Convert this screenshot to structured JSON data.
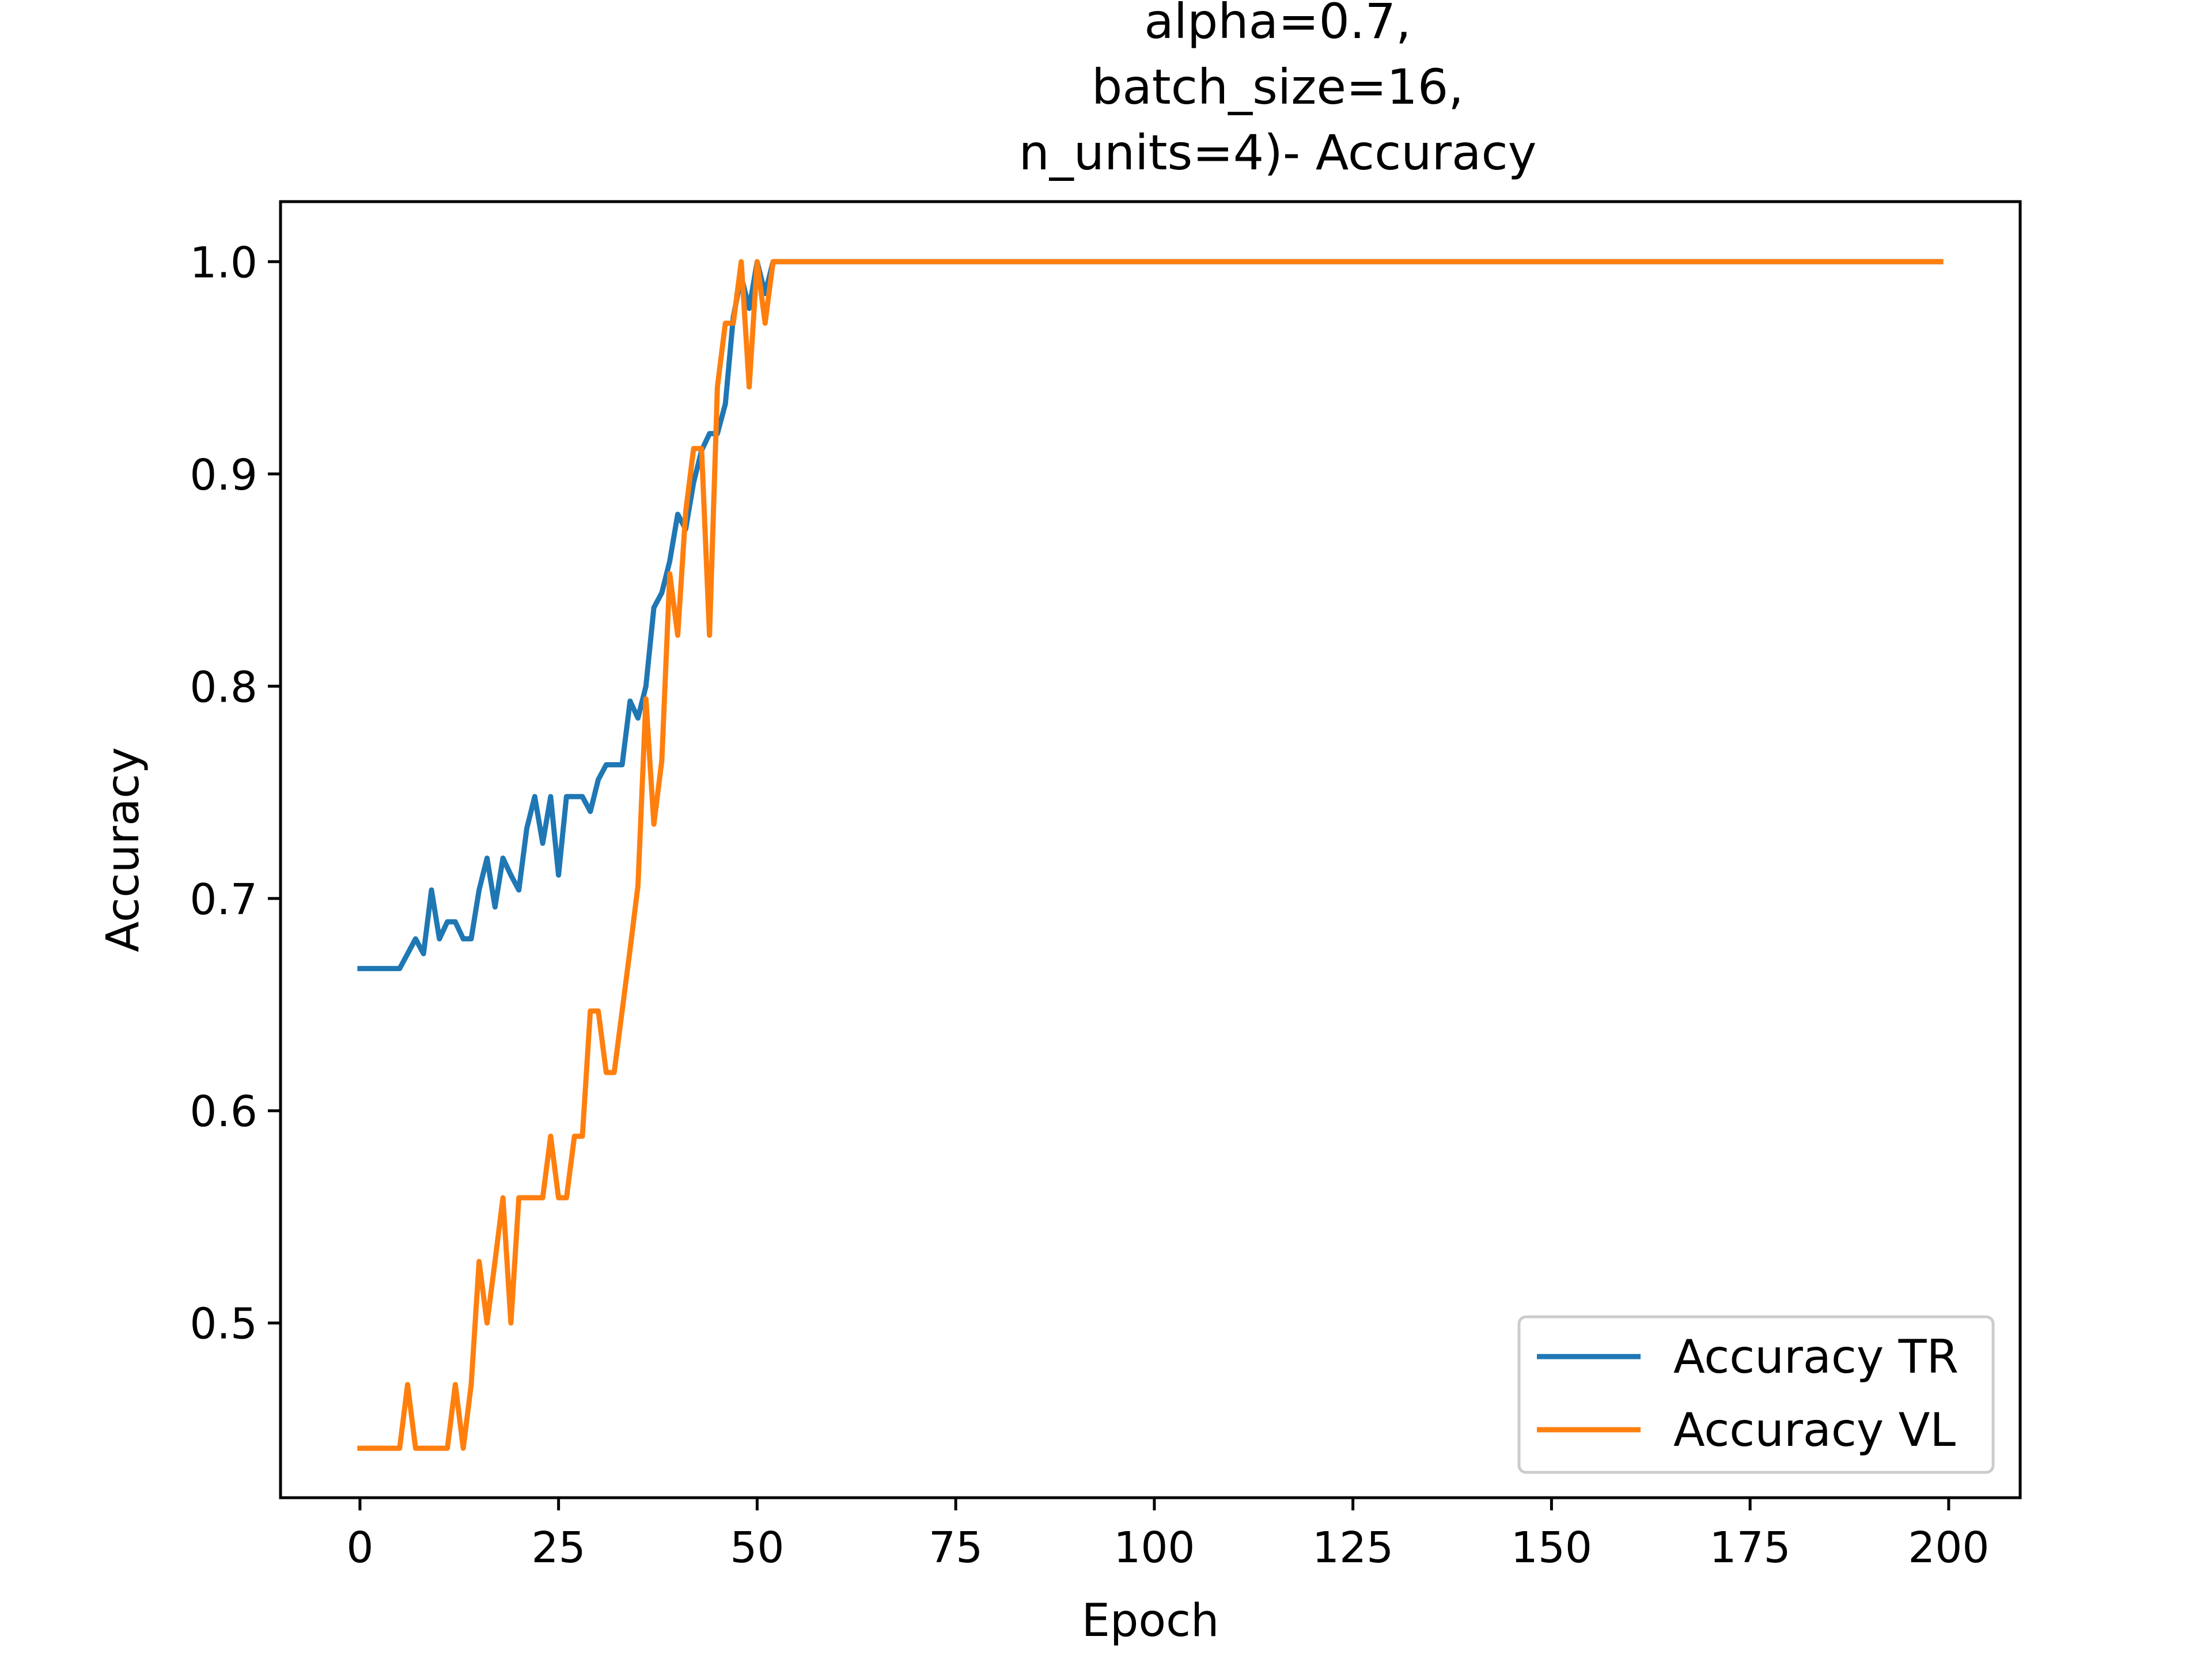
{
  "chart_data": {
    "type": "line",
    "title_lines": [
      "alpha=0.7,",
      "batch_size=16,",
      "n_units=4)- Accuracy"
    ],
    "xlabel": "Epoch",
    "ylabel": "Accuracy",
    "xlim": [
      -10,
      209
    ],
    "ylim": [
      0.4177,
      1.0283
    ],
    "xticks": [
      0,
      25,
      50,
      75,
      100,
      125,
      150,
      175,
      200
    ],
    "yticks": [
      0.5,
      0.6,
      0.7,
      0.8,
      0.9,
      1.0
    ],
    "ytick_labels": [
      "0.5",
      "0.6",
      "0.7",
      "0.8",
      "0.9",
      "1.0"
    ],
    "legend_position": "lower right",
    "x": [
      0,
      1,
      2,
      3,
      4,
      5,
      6,
      7,
      8,
      9,
      10,
      11,
      12,
      13,
      14,
      15,
      16,
      17,
      18,
      19,
      20,
      21,
      22,
      23,
      24,
      25,
      26,
      27,
      28,
      29,
      30,
      31,
      32,
      33,
      34,
      35,
      36,
      37,
      38,
      39,
      40,
      41,
      42,
      43,
      44,
      45,
      46,
      47,
      48,
      49,
      50,
      51,
      52,
      199
    ],
    "series": [
      {
        "name": "Accuracy TR",
        "color": "#1f77b4",
        "values": [
          0.667,
          0.667,
          0.667,
          0.667,
          0.667,
          0.667,
          0.674,
          0.681,
          0.674,
          0.704,
          0.681,
          0.689,
          0.689,
          0.681,
          0.681,
          0.704,
          0.719,
          0.696,
          0.719,
          0.711,
          0.704,
          0.733,
          0.748,
          0.726,
          0.748,
          0.711,
          0.748,
          0.748,
          0.748,
          0.741,
          0.756,
          0.763,
          0.763,
          0.763,
          0.793,
          0.785,
          0.8,
          0.837,
          0.844,
          0.859,
          0.881,
          0.874,
          0.896,
          0.911,
          0.919,
          0.919,
          0.933,
          0.974,
          0.993,
          0.978,
          1.0,
          0.985,
          1.0,
          1.0
        ]
      },
      {
        "name": "Accuracy VL",
        "color": "#ff7f0e",
        "values": [
          0.441,
          0.441,
          0.441,
          0.441,
          0.441,
          0.441,
          0.471,
          0.441,
          0.441,
          0.441,
          0.441,
          0.441,
          0.471,
          0.441,
          0.471,
          0.529,
          0.5,
          0.529,
          0.559,
          0.5,
          0.559,
          0.559,
          0.559,
          0.559,
          0.588,
          0.559,
          0.559,
          0.588,
          0.588,
          0.647,
          0.647,
          0.618,
          0.618,
          0.647,
          0.676,
          0.706,
          0.794,
          0.735,
          0.765,
          0.853,
          0.824,
          0.882,
          0.912,
          0.912,
          0.824,
          0.941,
          0.971,
          0.971,
          1.0,
          0.941,
          1.0,
          0.971,
          1.0,
          1.0
        ]
      }
    ]
  }
}
